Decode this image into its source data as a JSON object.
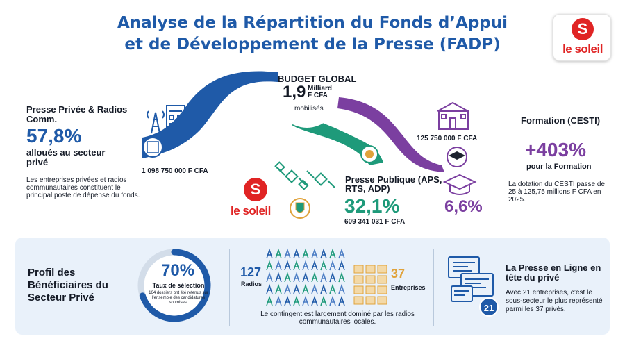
{
  "header": {
    "title_line1": "Analyse de la Répartition du Fonds d’Appui",
    "title_line2": "et de Développement de la Presse (FADP)",
    "brand": "le soleil",
    "brand_mark": "S"
  },
  "budget": {
    "title": "BUDGET GLOBAL",
    "value": "1,9",
    "unit_line1": "Milliard",
    "unit_line2": "F CFA",
    "sub": "mobilisés"
  },
  "prive": {
    "label": "Presse Privée & Radios Comm.",
    "percent": "57,8%",
    "sub": "alloués au secteur privé",
    "description": "Les entreprises privées et radios communautaires constituent le principal poste de dépense du fonds.",
    "amount": "1 098 750 000 F CFA",
    "share": 57.8,
    "color": "#1f5aa8"
  },
  "publique": {
    "label": "Presse Publique (APS, RTS, ADP)",
    "percent": "32,1%",
    "amount": "609 341 031 F CFA",
    "share": 32.1,
    "color": "#1e9a7a"
  },
  "formation": {
    "label": "Formation (CESTI)",
    "percent": "6,6%",
    "amount": "125 750 000 F CFA",
    "growth": "+403%",
    "growth_sub": "pour la Formation",
    "description": "La dotation du CESTI passe de 25 à 125,75 millions F CFA en 2025.",
    "share": 6.6,
    "color": "#7b3fa0"
  },
  "profil": {
    "title": "Profil des Bénéficiaires du Secteur Privé",
    "selection_percent": "70%",
    "selection_value": 70,
    "selection_label": "Taux de sélection",
    "selection_desc": "164 dossiers ont été retenus sur l’ensemble des candidatures soumises.",
    "radios_count": "127",
    "radios_label": "Radios",
    "entreprises_count": "37",
    "entreprises_label": "Entreprises",
    "contingent": "Le contingent est largement dominé par les radios communautaires locales.",
    "online_title": "La Presse en Ligne en tête du privé",
    "online_desc": "Avec 21 entreprises, c’est le sous-secteur le plus représenté parmi les 37 privés.",
    "online_count": "21"
  }
}
